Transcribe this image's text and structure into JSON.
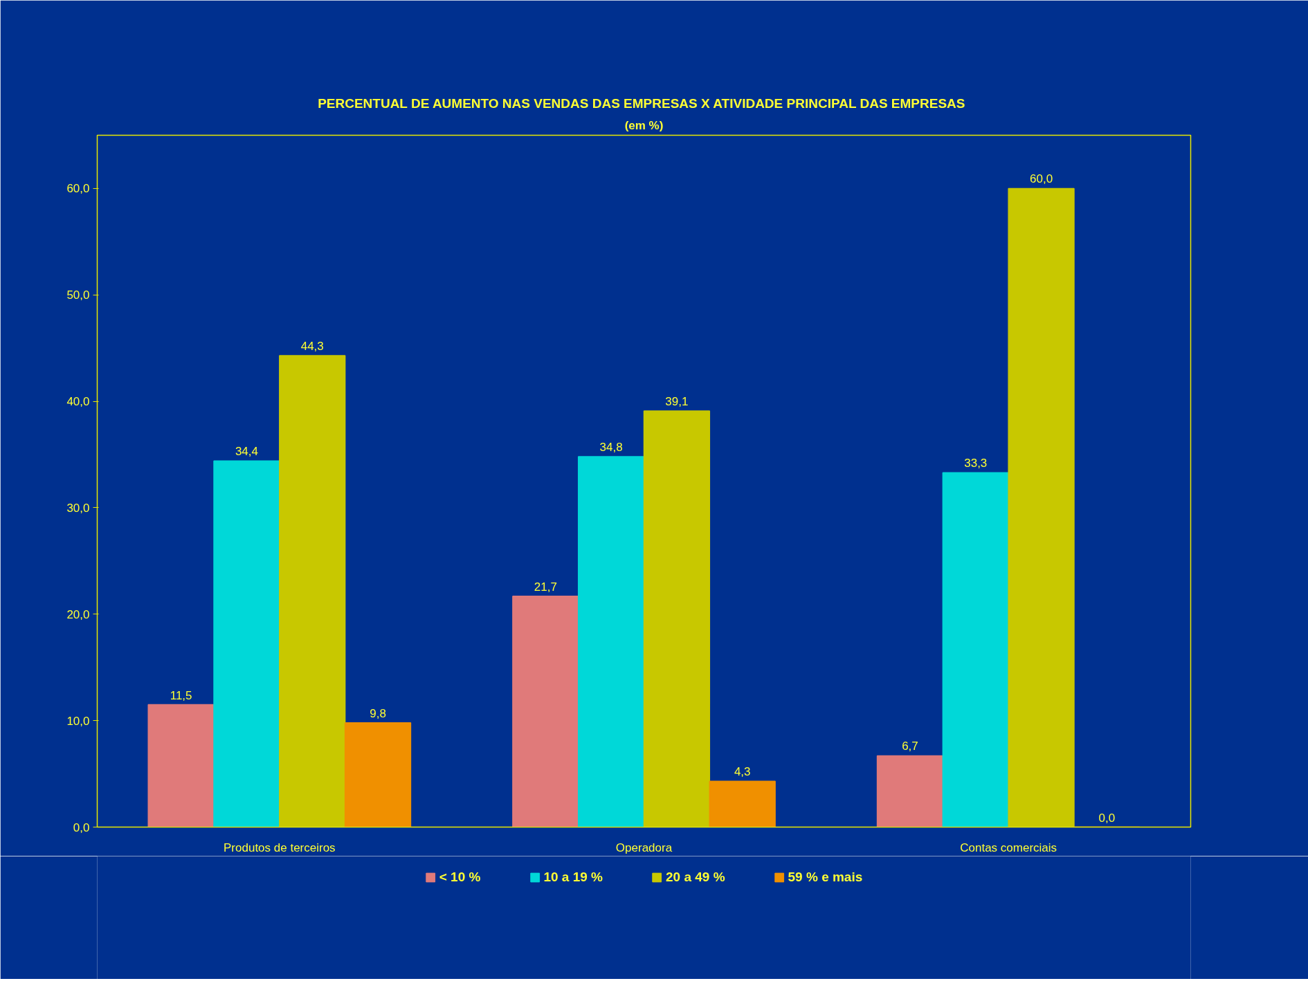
{
  "chart_data": {
    "type": "bar",
    "title": "PERCENTUAL DE AUMENTO NAS VENDAS DAS EMPRESAS X ATIVIDADE PRINCIPAL  DAS EMPRESAS",
    "subtitle": "(em %)",
    "categories": [
      "Produtos de terceiros",
      "Operadora",
      "Contas comerciais"
    ],
    "series": [
      {
        "name": "< 10 %",
        "color": "#e07a7a",
        "values": [
          11.5,
          21.7,
          6.7
        ],
        "value_labels": [
          "11,5",
          "21,7",
          "6,7"
        ]
      },
      {
        "name": "10 a 19 %",
        "color": "#00d8d8",
        "values": [
          34.4,
          34.8,
          33.3
        ],
        "value_labels": [
          "34,4",
          "34,8",
          "33,3"
        ]
      },
      {
        "name": "20 a 49 %",
        "color": "#c8c800",
        "values": [
          44.3,
          39.1,
          60.0
        ],
        "value_labels": [
          "44,3",
          "39,1",
          "60,0"
        ]
      },
      {
        "name": "59 % e mais",
        "color": "#f09000",
        "values": [
          9.8,
          4.3,
          0.0
        ],
        "value_labels": [
          "9,8",
          "4,3",
          "0,0"
        ]
      }
    ],
    "ylim": [
      0,
      65
    ],
    "yticks": [
      {
        "value": 0,
        "label": "0,0"
      },
      {
        "value": 10,
        "label": "10,0"
      },
      {
        "value": 20,
        "label": "20,0"
      },
      {
        "value": 30,
        "label": "30,0"
      },
      {
        "value": 40,
        "label": "40,0"
      },
      {
        "value": 50,
        "label": "50,0"
      },
      {
        "value": 60,
        "label": "60,0"
      }
    ],
    "grid": false,
    "legend": "bottom"
  }
}
